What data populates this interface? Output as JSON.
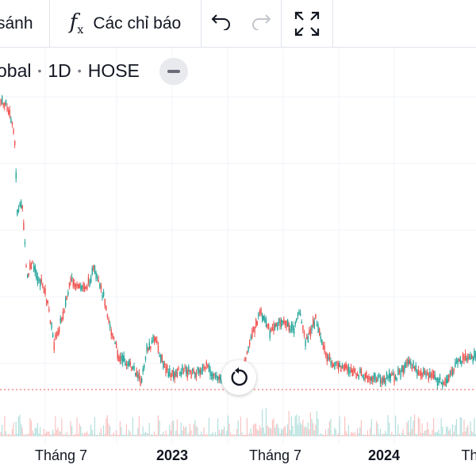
{
  "toolbar": {
    "compare_label": "sánh",
    "indicators_label": "Các chỉ báo",
    "fx_icon": "function-icon",
    "undo_icon": "undo-icon",
    "redo_icon": "redo-icon",
    "fullscreen_icon": "fullscreen-icon"
  },
  "legend": {
    "symbol": "obal",
    "interval": "1D",
    "exchange": "HOSE"
  },
  "colors": {
    "up": "#26a69a",
    "down": "#ef5350",
    "grid": "#f0f3fa",
    "price_line": "#ef5350"
  },
  "chart_data": {
    "type": "candlestick",
    "x_ticks": [
      {
        "label": "Tháng 7",
        "bold": false
      },
      {
        "label": "2023",
        "bold": true
      },
      {
        "label": "Tháng 7",
        "bold": false
      },
      {
        "label": "2024",
        "bold": true
      },
      {
        "label": "Th",
        "bold": false
      }
    ],
    "grid": true,
    "trend": [
      [
        0,
        0.05
      ],
      [
        8,
        0.06
      ],
      [
        18,
        0.14
      ],
      [
        22,
        0.4
      ],
      [
        28,
        0.36
      ],
      [
        34,
        0.6
      ],
      [
        40,
        0.55
      ],
      [
        48,
        0.6
      ],
      [
        55,
        0.62
      ],
      [
        62,
        0.7
      ],
      [
        68,
        0.8
      ],
      [
        78,
        0.72
      ],
      [
        90,
        0.6
      ],
      [
        98,
        0.63
      ],
      [
        110,
        0.62
      ],
      [
        118,
        0.57
      ],
      [
        125,
        0.62
      ],
      [
        132,
        0.66
      ],
      [
        140,
        0.76
      ],
      [
        150,
        0.84
      ],
      [
        160,
        0.86
      ],
      [
        170,
        0.88
      ],
      [
        178,
        0.92
      ],
      [
        185,
        0.82
      ],
      [
        195,
        0.78
      ],
      [
        205,
        0.86
      ],
      [
        215,
        0.9
      ],
      [
        230,
        0.88
      ],
      [
        245,
        0.89
      ],
      [
        260,
        0.87
      ],
      [
        272,
        0.91
      ],
      [
        282,
        0.9
      ],
      [
        292,
        0.91
      ],
      [
        305,
        0.88
      ],
      [
        318,
        0.77
      ],
      [
        328,
        0.7
      ],
      [
        340,
        0.76
      ],
      [
        355,
        0.73
      ],
      [
        370,
        0.76
      ],
      [
        378,
        0.7
      ],
      [
        385,
        0.8
      ],
      [
        398,
        0.72
      ],
      [
        410,
        0.83
      ],
      [
        420,
        0.86
      ],
      [
        440,
        0.88
      ],
      [
        460,
        0.9
      ],
      [
        480,
        0.91
      ],
      [
        500,
        0.9
      ],
      [
        515,
        0.86
      ],
      [
        530,
        0.89
      ],
      [
        548,
        0.9
      ],
      [
        560,
        0.93
      ],
      [
        575,
        0.86
      ],
      [
        588,
        0.84
      ],
      [
        600,
        0.84
      ]
    ]
  }
}
